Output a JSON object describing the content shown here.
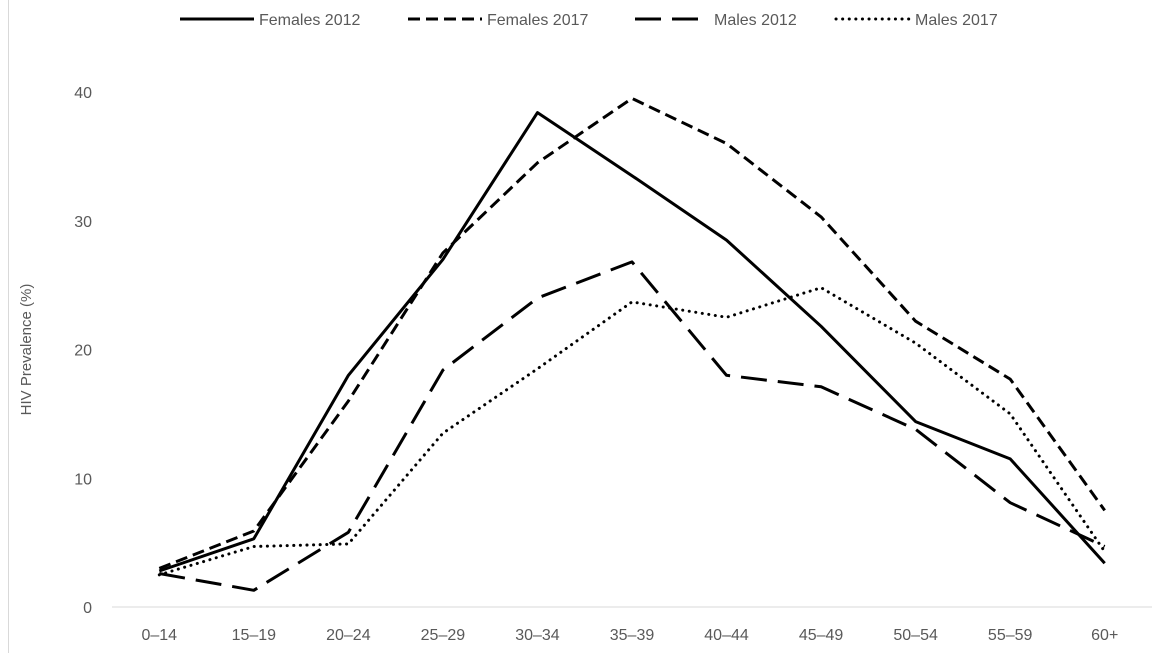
{
  "chart_data": {
    "type": "line",
    "title": "",
    "xlabel": "",
    "ylabel": "HIV Prevalence (%)",
    "ylim": [
      0,
      40
    ],
    "yticks": [
      0,
      10,
      20,
      30,
      40
    ],
    "grid": false,
    "legend_position": "top",
    "categories": [
      "0–14",
      "15–19",
      "20–24",
      "25–29",
      "30–34",
      "35–39",
      "40–44",
      "45–49",
      "50–54",
      "55–59",
      "60+"
    ],
    "series": [
      {
        "name": "Females 2012",
        "style": "solid",
        "values": [
          2.8,
          5.3,
          18.0,
          27.0,
          38.4,
          33.5,
          28.5,
          21.8,
          14.4,
          11.5,
          3.4
        ]
      },
      {
        "name": "Females 2017",
        "style": "short-dash",
        "values": [
          3.0,
          5.9,
          16.0,
          27.5,
          34.5,
          39.5,
          36.0,
          30.3,
          22.2,
          17.7,
          7.5
        ]
      },
      {
        "name": "Males 2012",
        "style": "long-dash",
        "values": [
          2.6,
          1.3,
          5.8,
          18.4,
          24.0,
          26.8,
          18.0,
          17.1,
          13.8,
          8.1,
          4.7
        ]
      },
      {
        "name": "Males 2017",
        "style": "dotted",
        "values": [
          2.5,
          4.7,
          4.9,
          13.5,
          18.5,
          23.7,
          22.5,
          24.8,
          20.5,
          15.0,
          4.3
        ]
      }
    ]
  }
}
